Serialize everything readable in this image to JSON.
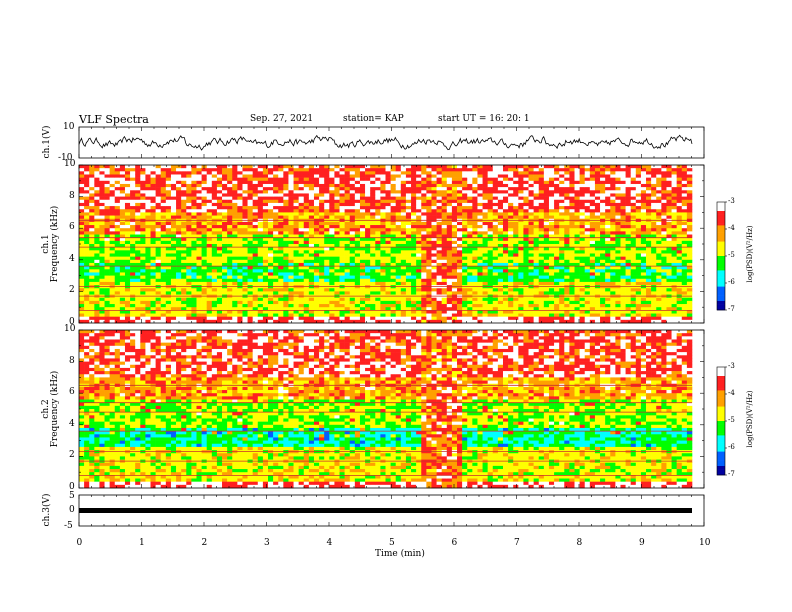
{
  "header": {
    "title": "VLF Spectra",
    "date": "Sep. 27, 2021",
    "station": "station= KAP",
    "start": "start  UT =   16: 20: 1"
  },
  "colorbar": {
    "label": "log(PSD)(V²/Hz)",
    "ticks": [
      "-3",
      "-4",
      "-5",
      "-6",
      "-7"
    ],
    "colors": [
      "#ffffff",
      "#ff2020",
      "#ffa000",
      "#ffff00",
      "#00ff00",
      "#00ffff",
      "#0060ff",
      "#0000a0"
    ]
  },
  "chart_data": [
    {
      "type": "line",
      "ylabel": "ch.1(V)",
      "xlim": [
        0,
        10
      ],
      "ylim": [
        -10,
        10
      ],
      "yticks": [
        "10",
        "-10"
      ],
      "note": "waveform trace",
      "y": [
        1.2,
        -2.5,
        3.1,
        -1.0,
        2.4,
        -3.3,
        0.8,
        2.9,
        -2.1,
        1.5,
        -0.4,
        3.5,
        -2.8,
        0.2,
        2.1,
        -1.9,
        2.6,
        -3.0,
        1.1,
        0.5,
        -2.2,
        3.0,
        -1.4,
        1.9,
        -2.7,
        0.9,
        2.3,
        -1.6,
        3.2,
        -0.8
      ]
    },
    {
      "type": "heatmap",
      "ylabel": "ch.1\nFrequency (kHz)",
      "xlim": [
        0,
        10
      ],
      "ylim": [
        0,
        10
      ],
      "yticks": [
        "0",
        "2",
        "4",
        "6",
        "8",
        "10"
      ],
      "color_scale": [
        -7,
        -3
      ]
    },
    {
      "type": "heatmap",
      "ylabel": "ch.2\nFrequency (kHz)",
      "xlim": [
        0,
        10
      ],
      "ylim": [
        0,
        10
      ],
      "yticks": [
        "0",
        "2",
        "4",
        "6",
        "8",
        "10"
      ],
      "color_scale": [
        -7,
        -3
      ]
    },
    {
      "type": "line",
      "ylabel": "ch.3(V)",
      "xlabel": "Time (min)",
      "xlim": [
        0,
        10
      ],
      "ylim": [
        -5,
        5
      ],
      "yticks": [
        "5",
        "0",
        "-5"
      ],
      "xticks": [
        "0",
        "1",
        "2",
        "3",
        "4",
        "5",
        "6",
        "7",
        "8",
        "9",
        "10"
      ],
      "x": [
        0,
        9.8
      ],
      "y": [
        0,
        0
      ]
    }
  ]
}
